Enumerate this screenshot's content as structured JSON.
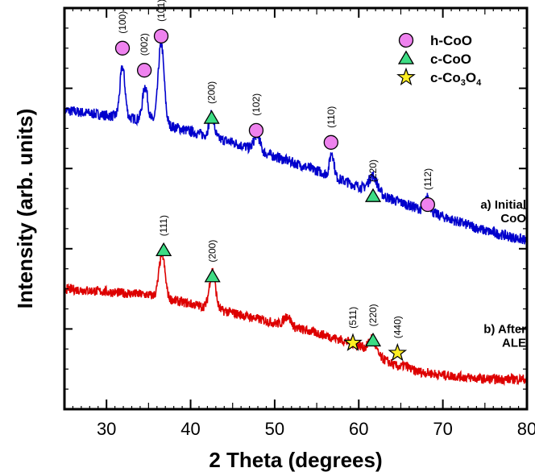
{
  "chart_data": {
    "type": "line",
    "xlabel": "2 Theta (degrees)",
    "ylabel": "Intensity (arb. units)",
    "xlim": [
      25,
      80
    ],
    "xticks": [
      30,
      40,
      50,
      60,
      70,
      80
    ],
    "ylim": [
      0,
      1
    ],
    "yticks_labeled": false,
    "legend": {
      "placement": "top-right",
      "entries": [
        {
          "label": "h-CoO",
          "marker": "circle",
          "color": "#ee82ee"
        },
        {
          "label": "c-CoO",
          "marker": "triangle",
          "color": "#3ddc84"
        },
        {
          "label_parts": [
            [
              "c-Co",
              false
            ],
            [
              "3",
              true
            ],
            [
              "O",
              false
            ],
            [
              "4",
              true
            ]
          ],
          "marker": "star",
          "color": "#ffee22"
        }
      ]
    },
    "series": [
      {
        "name_lines": [
          "a) Initial",
          "CoO"
        ],
        "color": "#0000cc",
        "baseline": [
          [
            25,
            0.745
          ],
          [
            35,
            0.72
          ],
          [
            45,
            0.665
          ],
          [
            55,
            0.595
          ],
          [
            65,
            0.515
          ],
          [
            75,
            0.445
          ],
          [
            80,
            0.42
          ]
        ],
        "peaks": [
          [
            31.9,
            0.125,
            0.3
          ],
          [
            34.6,
            0.085,
            0.3
          ],
          [
            36.5,
            0.2,
            0.35
          ],
          [
            42.5,
            0.055,
            0.3
          ],
          [
            47.9,
            0.04,
            0.35
          ],
          [
            56.8,
            0.06,
            0.25
          ],
          [
            61.7,
            0.04,
            0.5
          ],
          [
            68.2,
            0.035,
            0.3
          ]
        ],
        "noise": 0.013,
        "label_at_x": 75.5,
        "label_at_y": 0.5
      },
      {
        "name_lines": [
          "b) After",
          "ALE"
        ],
        "color": "#dd0000",
        "baseline": [
          [
            25,
            0.3
          ],
          [
            35,
            0.285
          ],
          [
            45,
            0.24
          ],
          [
            50,
            0.215
          ],
          [
            55,
            0.19
          ],
          [
            60,
            0.16
          ],
          [
            65,
            0.1
          ],
          [
            70,
            0.085
          ],
          [
            75,
            0.075
          ],
          [
            80,
            0.075
          ]
        ],
        "peaks": [
          [
            36.6,
            0.11,
            0.35
          ],
          [
            42.6,
            0.095,
            0.35
          ],
          [
            51.5,
            0.025,
            0.4
          ],
          [
            61.6,
            0.035,
            0.4
          ],
          [
            65.5,
            0.01,
            0.5
          ]
        ],
        "noise": 0.012,
        "label_at_x": 75.5,
        "label_at_y": 0.19
      }
    ],
    "annotations": [
      {
        "phase": "h-CoO",
        "hkl": "(100)",
        "x": 31.9,
        "y": 0.9
      },
      {
        "phase": "h-CoO",
        "hkl": "(002)",
        "x": 34.5,
        "y": 0.845
      },
      {
        "phase": "h-CoO",
        "hkl": "(101)",
        "x": 36.5,
        "y": 0.93
      },
      {
        "phase": "c-CoO",
        "hkl": "(200)",
        "x": 42.5,
        "y": 0.725
      },
      {
        "phase": "h-CoO",
        "hkl": "(102)",
        "x": 47.8,
        "y": 0.695
      },
      {
        "phase": "h-CoO",
        "hkl": "(110)",
        "x": 56.7,
        "y": 0.665
      },
      {
        "phase": "c-CoO",
        "hkl": "(220)",
        "x": 61.7,
        "y": 0.53
      },
      {
        "phase": "h-CoO",
        "hkl": "(112)",
        "x": 68.2,
        "y": 0.51
      },
      {
        "phase": "c-CoO",
        "hkl": "(111)",
        "x": 36.8,
        "y": 0.395
      },
      {
        "phase": "c-CoO",
        "hkl": "(200)",
        "x": 42.6,
        "y": 0.33
      },
      {
        "phase": "c-Co3O4",
        "hkl": "(511)",
        "x": 59.3,
        "y": 0.165
      },
      {
        "phase": "c-CoO",
        "hkl": "(220)",
        "x": 61.7,
        "y": 0.17
      },
      {
        "phase": "c-Co3O4",
        "hkl": "(440)",
        "x": 64.6,
        "y": 0.14
      }
    ]
  }
}
